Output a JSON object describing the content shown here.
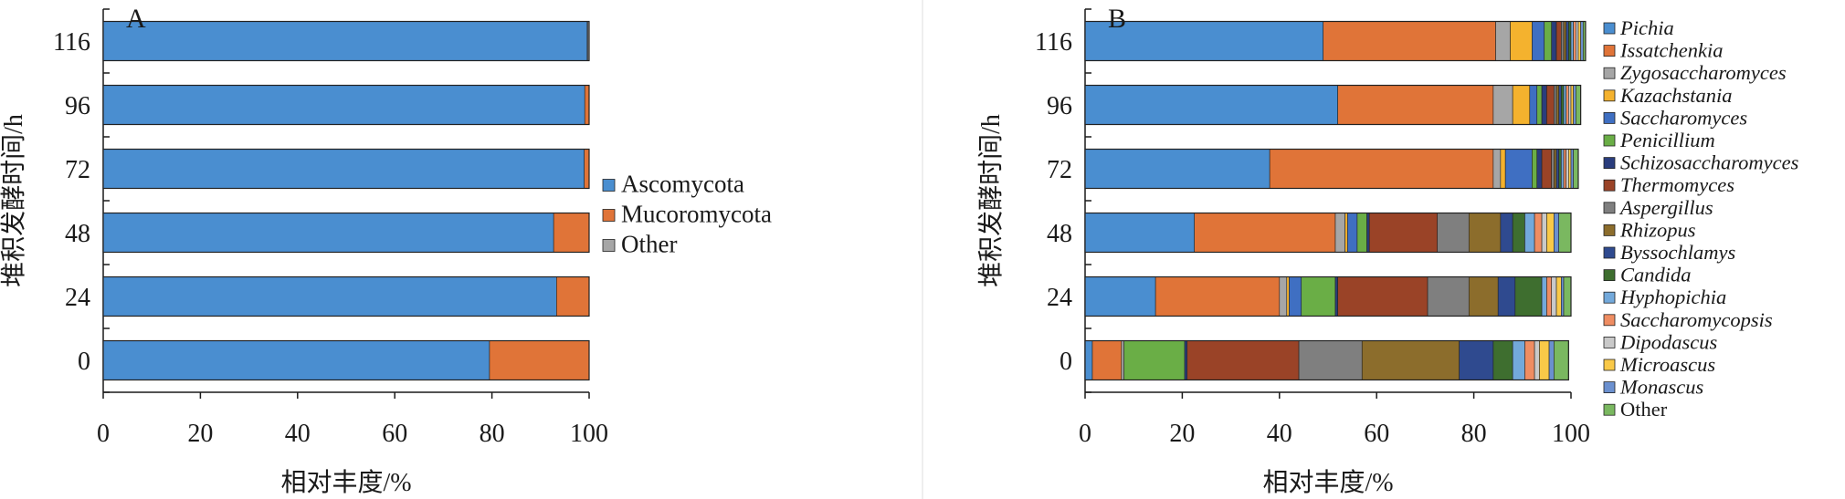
{
  "chart_data": [
    {
      "type": "bar",
      "orientation": "horizontal",
      "stacked": true,
      "panel_label": "A",
      "categories": [
        "0",
        "24",
        "48",
        "72",
        "96",
        "116"
      ],
      "xlabel": "相对丰度/%",
      "ylabel": "堆积发酵时间/h",
      "xlim": [
        0,
        100
      ],
      "xticks": [
        "0",
        "20",
        "40",
        "60",
        "80",
        "100"
      ],
      "legend_position": "right",
      "series": [
        {
          "name": "Ascomycota",
          "color": "#4a8ed0",
          "values": [
            79.5,
            93.3,
            92.7,
            99.0,
            99.1,
            99.6
          ]
        },
        {
          "name": "Mucoromycota",
          "color": "#e07438",
          "values": [
            20.5,
            6.7,
            7.3,
            1.0,
            0.9,
            0.1
          ]
        },
        {
          "name": "Other",
          "color": "#a6a6a6",
          "values": [
            0.0,
            0.0,
            0.0,
            0.0,
            0.0,
            0.3
          ]
        }
      ]
    },
    {
      "type": "bar",
      "orientation": "horizontal",
      "stacked": true,
      "panel_label": "B",
      "categories": [
        "0",
        "24",
        "48",
        "72",
        "96",
        "116"
      ],
      "xlabel": "相对丰度/%",
      "ylabel": "堆积发酵时间/h",
      "xlim": [
        0,
        100
      ],
      "xticks": [
        "0",
        "20",
        "40",
        "60",
        "80",
        "100"
      ],
      "legend_position": "right",
      "series": [
        {
          "name": "Pichia",
          "color": "#4a8ed0",
          "values": [
            1.5,
            14.5,
            22.5,
            38.0,
            52.0,
            49.0
          ]
        },
        {
          "name": "Issatchenkia",
          "color": "#e07438",
          "values": [
            6.0,
            25.5,
            29.0,
            46.0,
            32.0,
            35.5
          ]
        },
        {
          "name": "Zygosaccharomyces",
          "color": "#a6a6a6",
          "values": [
            0.5,
            1.5,
            2.0,
            1.5,
            4.0,
            3.0
          ]
        },
        {
          "name": "Kazachstania",
          "color": "#f4b22e",
          "values": [
            0.0,
            0.5,
            0.5,
            1.0,
            3.5,
            4.5
          ]
        },
        {
          "name": "Saccharomyces",
          "color": "#3f6fc2",
          "values": [
            0.0,
            2.5,
            2.0,
            5.5,
            1.5,
            2.5
          ]
        },
        {
          "name": "Penicillium",
          "color": "#6aae46",
          "values": [
            12.5,
            7.0,
            2.0,
            1.0,
            1.0,
            1.5
          ]
        },
        {
          "name": "Schizosaccharomyces",
          "color": "#2a3d7d",
          "values": [
            0.5,
            0.5,
            0.5,
            1.0,
            1.0,
            1.0
          ]
        },
        {
          "name": "Thermomyces",
          "color": "#9a4327",
          "values": [
            23.0,
            18.5,
            14.0,
            2.0,
            1.5,
            1.0
          ]
        },
        {
          "name": "Aspergillus",
          "color": "#7f7f7f",
          "values": [
            13.0,
            8.5,
            6.5,
            0.5,
            0.5,
            0.5
          ]
        },
        {
          "name": "Rhizopus",
          "color": "#8c6d2c",
          "values": [
            20.0,
            6.0,
            6.5,
            0.5,
            0.5,
            0.5
          ]
        },
        {
          "name": "Byssochlamys",
          "color": "#2f4a8f",
          "values": [
            7.0,
            3.5,
            2.5,
            0.5,
            0.5,
            0.5
          ]
        },
        {
          "name": "Candida",
          "color": "#3e6e2f",
          "values": [
            4.0,
            5.5,
            2.5,
            0.5,
            0.5,
            0.5
          ]
        },
        {
          "name": "Hyphopichia",
          "color": "#73a9db",
          "values": [
            2.5,
            1.0,
            2.0,
            0.5,
            0.5,
            0.5
          ]
        },
        {
          "name": "Saccharomycopsis",
          "color": "#ef8d62",
          "values": [
            2.0,
            1.0,
            1.5,
            0.5,
            0.5,
            0.5
          ]
        },
        {
          "name": "Dipodascus",
          "color": "#c9c9c9",
          "values": [
            1.0,
            1.0,
            1.0,
            0.5,
            0.5,
            0.5
          ]
        },
        {
          "name": "Microascus",
          "color": "#f9c948",
          "values": [
            2.0,
            1.0,
            1.5,
            0.5,
            0.5,
            0.5
          ]
        },
        {
          "name": "Monascus",
          "color": "#6b90cf",
          "values": [
            1.0,
            0.5,
            1.0,
            0.5,
            0.5,
            0.5
          ]
        },
        {
          "name": "Other",
          "color": "#7ab860",
          "values": [
            3.0,
            1.5,
            2.5,
            1.0,
            1.0,
            0.5
          ]
        }
      ]
    }
  ]
}
